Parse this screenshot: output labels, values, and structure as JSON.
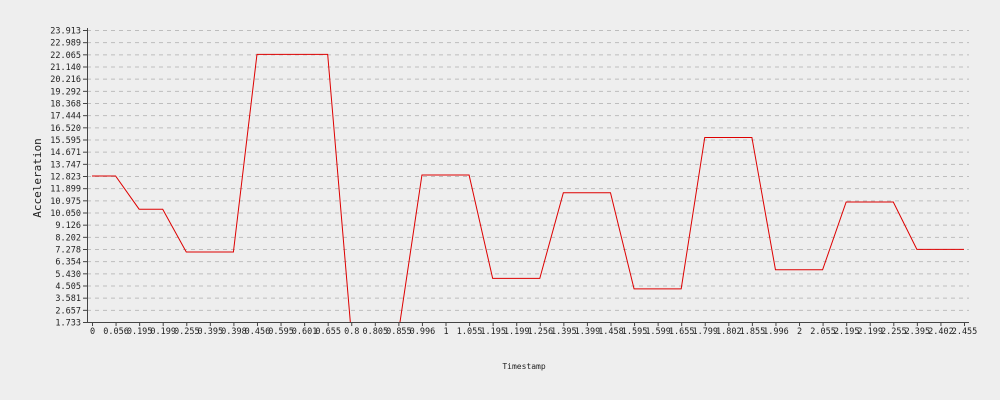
{
  "chart_data": {
    "type": "line",
    "title": "",
    "xlabel": "Timestamp",
    "ylabel": "Acceleration",
    "x_ticks": [
      "0",
      "0.056",
      "0.195",
      "0.199",
      "0.255",
      "0.395",
      "0.398",
      "0.456",
      "0.595",
      "0.601",
      "0.655",
      "0.8",
      "0.805",
      "0.855",
      "0.996",
      "1",
      "1.055",
      "1.195",
      "1.199",
      "1.256",
      "1.395",
      "1.399",
      "1.458",
      "1.595",
      "1.599",
      "1.655",
      "1.799",
      "1.802",
      "1.855",
      "1.996",
      "2",
      "2.055",
      "2.195",
      "2.199",
      "2.255",
      "2.395",
      "2.402",
      "2.455"
    ],
    "y_ticks": [
      "1.733",
      "2.657",
      "3.581",
      "4.505",
      "5.430",
      "6.354",
      "7.278",
      "8.202",
      "9.126",
      "10.050",
      "10.975",
      "11.899",
      "12.823",
      "13.747",
      "14.671",
      "15.595",
      "16.520",
      "17.444",
      "18.368",
      "19.292",
      "20.216",
      "21.140",
      "22.065",
      "22.989",
      "23.913"
    ],
    "ylim": [
      1.733,
      23.913
    ],
    "grid": true,
    "series": [
      {
        "color": "#dd0000",
        "x": [
          0,
          0.056,
          0.195,
          0.199,
          0.255,
          0.395,
          0.398,
          0.456,
          0.595,
          0.601,
          0.655,
          0.8,
          0.805,
          0.855,
          0.996,
          1,
          1.055,
          1.195,
          1.199,
          1.256,
          1.395,
          1.399,
          1.458,
          1.595,
          1.599,
          1.655,
          1.799,
          1.802,
          1.855,
          1.996,
          2,
          2.055,
          2.195,
          2.199,
          2.255,
          2.395,
          2.402,
          2.455
        ],
        "values": [
          12.823,
          12.823,
          10.3,
          10.3,
          7.05,
          7.05,
          7.05,
          22.065,
          22.065,
          22.065,
          22.065,
          0.9,
          0.9,
          0.9,
          12.9,
          12.9,
          12.9,
          5.05,
          5.05,
          5.05,
          11.55,
          11.55,
          11.55,
          4.25,
          4.25,
          4.25,
          15.75,
          15.75,
          15.75,
          5.7,
          5.7,
          5.7,
          10.85,
          10.85,
          10.85,
          7.25,
          7.25,
          7.25
        ]
      }
    ]
  }
}
